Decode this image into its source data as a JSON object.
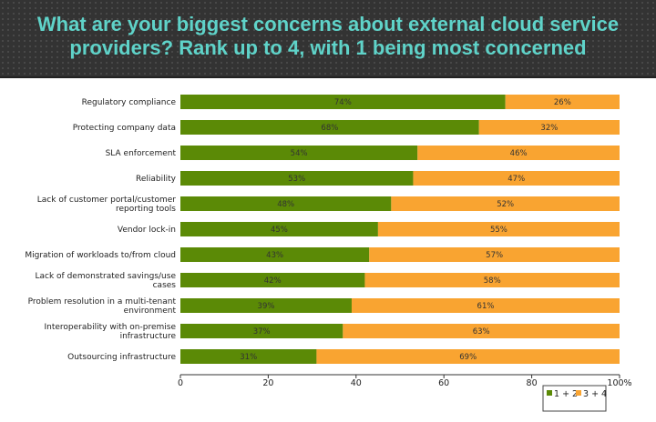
{
  "header": {
    "title_line1": "What are your biggest concerns about external cloud service",
    "title_line2": "providers? Rank up to 4, with 1 being most concerned"
  },
  "chart_data": {
    "type": "bar",
    "stacked": true,
    "orientation": "horizontal",
    "title": "What are your biggest concerns about external cloud service providers? Rank up to 4, with 1 being most concerned",
    "categories": [
      [
        "Regulatory compliance"
      ],
      [
        "Protecting company data"
      ],
      [
        "SLA enforcement"
      ],
      [
        "Reliability"
      ],
      [
        "Lack of customer portal/customer",
        "reporting tools"
      ],
      [
        "Vendor lock-in"
      ],
      [
        "Migration of workloads to/from cloud"
      ],
      [
        "Lack of demonstrated savings/use",
        "cases"
      ],
      [
        "Problem resolution in a multi-tenant",
        "environment"
      ],
      [
        "Interoperability with on-premise",
        "infrastructure"
      ],
      [
        "Outsourcing infrastructure"
      ]
    ],
    "series": [
      {
        "name": "1 + 2",
        "color": "#5b8a06",
        "values": [
          74,
          68,
          54,
          53,
          48,
          45,
          43,
          42,
          39,
          37,
          31
        ]
      },
      {
        "name": "3 + 4",
        "color": "#f9a431",
        "values": [
          26,
          32,
          46,
          47,
          52,
          55,
          57,
          58,
          61,
          63,
          69
        ]
      }
    ],
    "xlim": [
      0,
      100
    ],
    "xticks": [
      "0",
      "20",
      "40",
      "60",
      "80",
      "100%"
    ],
    "legend": "bottom-right"
  }
}
